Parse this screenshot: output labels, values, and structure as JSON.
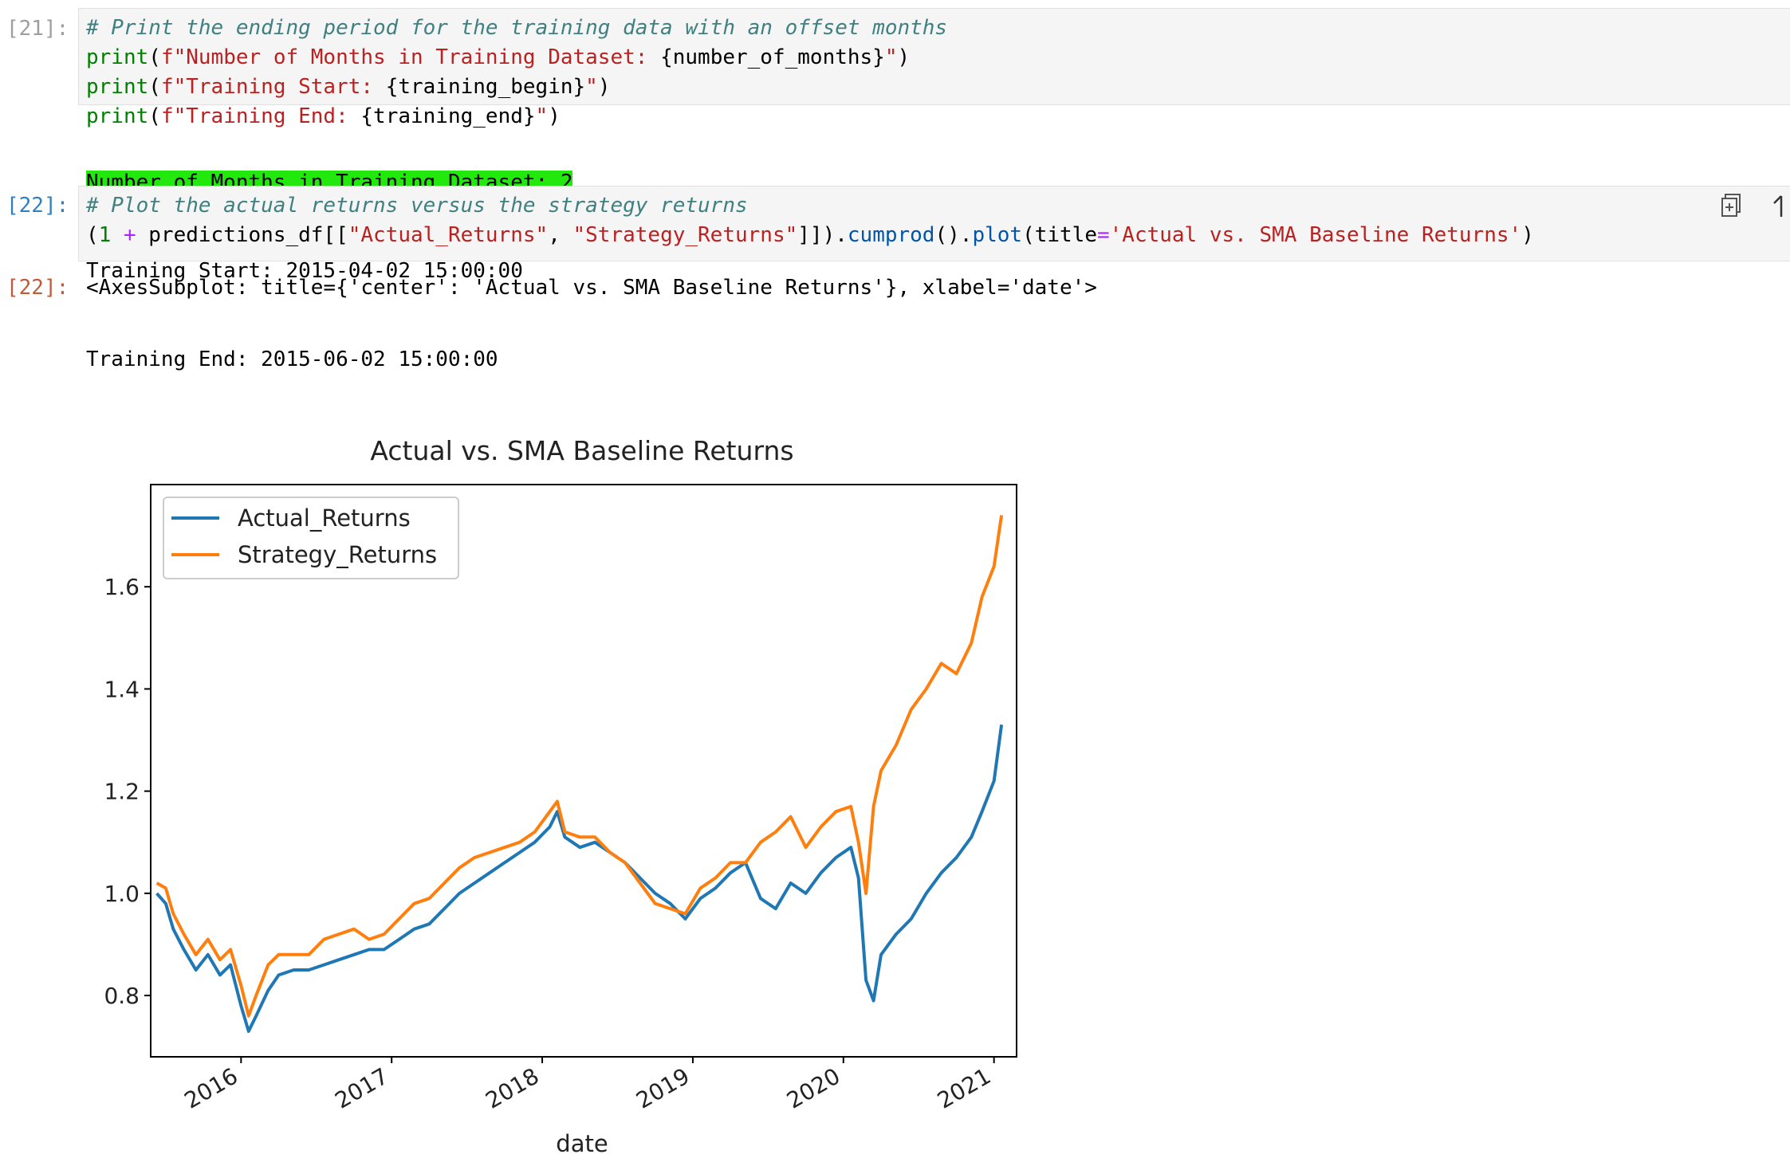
{
  "cells": [
    {
      "prompt": "[21]:",
      "code_lines": [
        [
          {
            "t": "# Print the ending period for the training data with an offset months",
            "c": "cm"
          }
        ],
        [
          {
            "t": "print",
            "c": "kw"
          },
          {
            "t": "(",
            "c": ""
          },
          {
            "t": "f\"Number of Months in Training Dataset: ",
            "c": "st"
          },
          {
            "t": "{number_of_months}",
            "c": ""
          },
          {
            "t": "\"",
            "c": "st"
          },
          {
            "t": ")",
            "c": ""
          }
        ],
        [
          {
            "t": "print",
            "c": "kw"
          },
          {
            "t": "(",
            "c": ""
          },
          {
            "t": "f\"Training Start: ",
            "c": "st"
          },
          {
            "t": "{training_begin}",
            "c": ""
          },
          {
            "t": "\"",
            "c": "st"
          },
          {
            "t": ")",
            "c": ""
          }
        ],
        [
          {
            "t": "print",
            "c": "kw"
          },
          {
            "t": "(",
            "c": ""
          },
          {
            "t": "f\"Training End: ",
            "c": "st"
          },
          {
            "t": "{training_end}",
            "c": ""
          },
          {
            "t": "\"",
            "c": "st"
          },
          {
            "t": ")",
            "c": ""
          }
        ]
      ],
      "output_lines": [
        "Number of Months in Training Dataset: 2",
        "Training Start: 2015-04-02 15:00:00",
        "Training End: 2015-06-02 15:00:00"
      ]
    },
    {
      "prompt": "[22]:",
      "code_lines": [
        [
          {
            "t": "# Plot the actual returns versus the strategy returns",
            "c": "cm"
          }
        ],
        [
          {
            "t": "(",
            "c": ""
          },
          {
            "t": "1",
            "c": "nm"
          },
          {
            "t": " + ",
            "c": "op"
          },
          {
            "t": "predictions_df[[",
            "c": ""
          },
          {
            "t": "\"Actual_Returns\"",
            "c": "st"
          },
          {
            "t": ", ",
            "c": ""
          },
          {
            "t": "\"Strategy_Returns\"",
            "c": "st"
          },
          {
            "t": "]]).",
            "c": ""
          },
          {
            "t": "cumprod",
            "c": "at"
          },
          {
            "t": "().",
            "c": ""
          },
          {
            "t": "plot",
            "c": "at"
          },
          {
            "t": "(title",
            "c": ""
          },
          {
            "t": "=",
            "c": "op"
          },
          {
            "t": "'Actual vs. SMA Baseline Returns'",
            "c": "st"
          },
          {
            "t": ")",
            "c": ""
          }
        ]
      ],
      "output_prompt": "[22]:",
      "output_repr": "<AxesSubplot: title={'center': 'Actual vs. SMA Baseline Returns'}, xlabel='date'>"
    }
  ],
  "icons": {
    "copy": "duplicate-cell-icon",
    "move": "move-up-icon"
  },
  "chart_data": {
    "type": "line",
    "title": "Actual vs. SMA Baseline Returns",
    "xlabel": "date",
    "ylabel": "",
    "xlim": [
      2015.4,
      2021.15
    ],
    "ylim": [
      0.68,
      1.8
    ],
    "xticks": [
      2016,
      2017,
      2018,
      2019,
      2020,
      2021
    ],
    "xtick_labels": [
      "2016",
      "2017",
      "2018",
      "2019",
      "2020",
      "2021"
    ],
    "yticks": [
      0.8,
      1.0,
      1.2,
      1.4,
      1.6
    ],
    "ytick_labels": [
      "0.8",
      "1.0",
      "1.2",
      "1.4",
      "1.6"
    ],
    "grid": false,
    "legend": "top-left",
    "series": [
      {
        "name": "Actual_Returns",
        "color": "#1f77b4",
        "x": [
          2015.44,
          2015.5,
          2015.55,
          2015.62,
          2015.7,
          2015.78,
          2015.86,
          2015.93,
          2016.0,
          2016.05,
          2016.1,
          2016.18,
          2016.25,
          2016.35,
          2016.45,
          2016.55,
          2016.65,
          2016.75,
          2016.85,
          2016.95,
          2017.05,
          2017.15,
          2017.25,
          2017.35,
          2017.45,
          2017.55,
          2017.65,
          2017.75,
          2017.85,
          2017.95,
          2018.05,
          2018.1,
          2018.15,
          2018.25,
          2018.35,
          2018.45,
          2018.55,
          2018.65,
          2018.75,
          2018.85,
          2018.95,
          2019.05,
          2019.15,
          2019.25,
          2019.35,
          2019.45,
          2019.55,
          2019.65,
          2019.75,
          2019.85,
          2019.95,
          2020.05,
          2020.1,
          2020.15,
          2020.2,
          2020.25,
          2020.35,
          2020.45,
          2020.55,
          2020.65,
          2020.75,
          2020.85,
          2020.92,
          2021.0,
          2021.05
        ],
        "values": [
          1.0,
          0.98,
          0.93,
          0.89,
          0.85,
          0.88,
          0.84,
          0.86,
          0.78,
          0.73,
          0.76,
          0.81,
          0.84,
          0.85,
          0.85,
          0.86,
          0.87,
          0.88,
          0.89,
          0.89,
          0.91,
          0.93,
          0.94,
          0.97,
          1.0,
          1.02,
          1.04,
          1.06,
          1.08,
          1.1,
          1.13,
          1.16,
          1.11,
          1.09,
          1.1,
          1.08,
          1.06,
          1.03,
          1.0,
          0.98,
          0.95,
          0.99,
          1.01,
          1.04,
          1.06,
          0.99,
          0.97,
          1.02,
          1.0,
          1.04,
          1.07,
          1.09,
          1.03,
          0.83,
          0.79,
          0.88,
          0.92,
          0.95,
          1.0,
          1.04,
          1.07,
          1.11,
          1.16,
          1.22,
          1.33
        ]
      },
      {
        "name": "Strategy_Returns",
        "color": "#ff7f0e",
        "x": [
          2015.44,
          2015.5,
          2015.55,
          2015.62,
          2015.7,
          2015.78,
          2015.86,
          2015.93,
          2016.0,
          2016.05,
          2016.1,
          2016.18,
          2016.25,
          2016.35,
          2016.45,
          2016.55,
          2016.65,
          2016.75,
          2016.85,
          2016.95,
          2017.05,
          2017.15,
          2017.25,
          2017.35,
          2017.45,
          2017.55,
          2017.65,
          2017.75,
          2017.85,
          2017.95,
          2018.05,
          2018.1,
          2018.15,
          2018.25,
          2018.35,
          2018.45,
          2018.55,
          2018.65,
          2018.75,
          2018.85,
          2018.95,
          2019.05,
          2019.15,
          2019.25,
          2019.35,
          2019.45,
          2019.55,
          2019.65,
          2019.75,
          2019.85,
          2019.95,
          2020.05,
          2020.1,
          2020.15,
          2020.2,
          2020.25,
          2020.35,
          2020.45,
          2020.55,
          2020.65,
          2020.75,
          2020.85,
          2020.92,
          2021.0,
          2021.05
        ],
        "values": [
          1.02,
          1.01,
          0.96,
          0.92,
          0.88,
          0.91,
          0.87,
          0.89,
          0.82,
          0.76,
          0.8,
          0.86,
          0.88,
          0.88,
          0.88,
          0.91,
          0.92,
          0.93,
          0.91,
          0.92,
          0.95,
          0.98,
          0.99,
          1.02,
          1.05,
          1.07,
          1.08,
          1.09,
          1.1,
          1.12,
          1.16,
          1.18,
          1.12,
          1.11,
          1.11,
          1.08,
          1.06,
          1.02,
          0.98,
          0.97,
          0.96,
          1.01,
          1.03,
          1.06,
          1.06,
          1.1,
          1.12,
          1.15,
          1.09,
          1.13,
          1.16,
          1.17,
          1.1,
          1.0,
          1.17,
          1.24,
          1.29,
          1.36,
          1.4,
          1.45,
          1.43,
          1.49,
          1.58,
          1.64,
          1.74
        ]
      }
    ]
  }
}
